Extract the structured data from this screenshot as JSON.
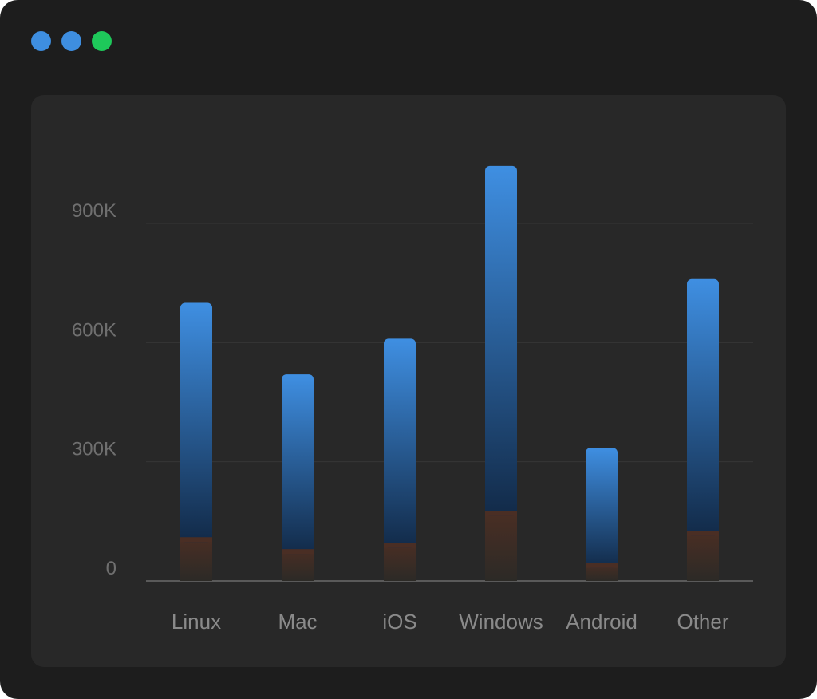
{
  "window": {
    "controls": [
      {
        "name": "close-dot",
        "color": "#3e8ee0"
      },
      {
        "name": "minimize-dot",
        "color": "#3e8ee0"
      },
      {
        "name": "maximize-dot",
        "color": "#1ec95a"
      }
    ]
  },
  "chart_data": {
    "type": "bar",
    "categories": [
      "Linux",
      "Mac",
      "iOS",
      "Windows",
      "Android",
      "Other"
    ],
    "series": [
      {
        "values": [
          110000,
          80000,
          95000,
          175000,
          45000,
          125000
        ],
        "color": "#4a2e24"
      },
      {
        "values": [
          590000,
          440000,
          515000,
          870000,
          290000,
          635000
        ],
        "color": "#3f8fe2"
      }
    ],
    "y_ticks": [
      0,
      300000,
      600000,
      900000
    ],
    "y_tick_labels": [
      "0",
      "300K",
      "600K",
      "900K"
    ],
    "ylim": [
      0,
      900000
    ],
    "grid": true,
    "title": "",
    "xlabel": "",
    "ylabel": ""
  }
}
